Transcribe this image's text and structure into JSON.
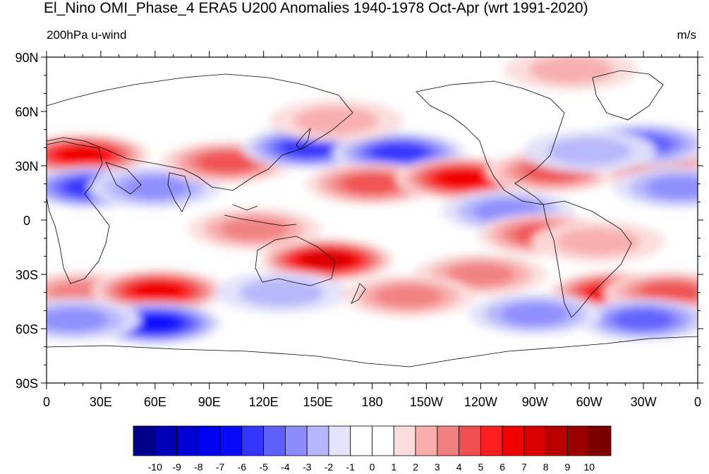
{
  "header": {
    "title": "El_Nino OMI_Phase_4 ERA5 U200 Anomalies 1940-1978 Oct-Apr (wrt 1991-2020)",
    "left_label": "200hPa u-wind",
    "right_label": "m/s"
  },
  "map": {
    "projection": "cylindrical-equidistant",
    "lon_range": [
      0,
      360
    ],
    "lat_range": [
      -90,
      90
    ],
    "lat_ticks": [
      {
        "value": 90,
        "label": "90N"
      },
      {
        "value": 60,
        "label": "60N"
      },
      {
        "value": 30,
        "label": "30N"
      },
      {
        "value": 0,
        "label": "0"
      },
      {
        "value": -30,
        "label": "30S"
      },
      {
        "value": -60,
        "label": "60S"
      },
      {
        "value": -90,
        "label": "90S"
      }
    ],
    "lon_ticks": [
      {
        "value": 0,
        "label": "0"
      },
      {
        "value": 30,
        "label": "30E"
      },
      {
        "value": 60,
        "label": "60E"
      },
      {
        "value": 90,
        "label": "90E"
      },
      {
        "value": 120,
        "label": "120E"
      },
      {
        "value": 150,
        "label": "150E"
      },
      {
        "value": 180,
        "label": "180"
      },
      {
        "value": 210,
        "label": "150W"
      },
      {
        "value": 240,
        "label": "120W"
      },
      {
        "value": 270,
        "label": "90W"
      },
      {
        "value": 300,
        "label": "60W"
      },
      {
        "value": 330,
        "label": "30W"
      },
      {
        "value": 360,
        "label": "0"
      }
    ]
  },
  "colorbar": {
    "labels": [
      "-10",
      "-9",
      "-8",
      "-7",
      "-6",
      "-5",
      "-4",
      "-3",
      "-2",
      "-1",
      "0",
      "1",
      "2",
      "3",
      "4",
      "5",
      "6",
      "7",
      "8",
      "9",
      "10"
    ],
    "colors": [
      "#00008b",
      "#0000b8",
      "#0000d5",
      "#0000f0",
      "#0a0aff",
      "#3535ff",
      "#6060ff",
      "#8c8cff",
      "#b5b5fb",
      "#e2e2fb",
      "#ffffff",
      "#ffffff",
      "#fbdcdc",
      "#f8adad",
      "#f08080",
      "#f05050",
      "#ff1f1f",
      "#f00000",
      "#d80000",
      "#b80000",
      "#9a0000",
      "#7c0000"
    ]
  },
  "anomalies": [
    {
      "lon": 20,
      "lat": 36,
      "v": 6
    },
    {
      "lon": 25,
      "lat": 18,
      "v": -5
    },
    {
      "lon": 60,
      "lat": 18,
      "v": -3
    },
    {
      "lon": 20,
      "lat": -40,
      "v": 3
    },
    {
      "lon": 62,
      "lat": -39,
      "v": 6
    },
    {
      "lon": 60,
      "lat": -57,
      "v": -6
    },
    {
      "lon": 15,
      "lat": -55,
      "v": -3
    },
    {
      "lon": 100,
      "lat": 32,
      "v": 4
    },
    {
      "lon": 145,
      "lat": 40,
      "v": -5
    },
    {
      "lon": 195,
      "lat": 37,
      "v": -5
    },
    {
      "lon": 160,
      "lat": 55,
      "v": 2
    },
    {
      "lon": 155,
      "lat": -22,
      "v": 7
    },
    {
      "lon": 180,
      "lat": 20,
      "v": 4
    },
    {
      "lon": 230,
      "lat": 23,
      "v": 6
    },
    {
      "lon": 280,
      "lat": 27,
      "v": 4
    },
    {
      "lon": 255,
      "lat": 5,
      "v": -3
    },
    {
      "lon": 275,
      "lat": -8,
      "v": 4
    },
    {
      "lon": 305,
      "lat": -12,
      "v": 2
    },
    {
      "lon": 315,
      "lat": -40,
      "v": 6
    },
    {
      "lon": 345,
      "lat": -40,
      "v": 4
    },
    {
      "lon": 330,
      "lat": -55,
      "v": -4
    },
    {
      "lon": 270,
      "lat": -52,
      "v": -3
    },
    {
      "lon": 355,
      "lat": 36,
      "v": 6
    },
    {
      "lon": 340,
      "lat": 28,
      "v": 3
    },
    {
      "lon": 350,
      "lat": 18,
      "v": -3
    },
    {
      "lon": 330,
      "lat": 42,
      "v": -4
    },
    {
      "lon": 300,
      "lat": 38,
      "v": -2
    },
    {
      "lon": 290,
      "lat": 83,
      "v": 2
    },
    {
      "lon": 130,
      "lat": -40,
      "v": -2
    },
    {
      "lon": 115,
      "lat": -5,
      "v": 3
    },
    {
      "lon": 240,
      "lat": -30,
      "v": 3
    },
    {
      "lon": 200,
      "lat": -42,
      "v": 3
    }
  ]
}
